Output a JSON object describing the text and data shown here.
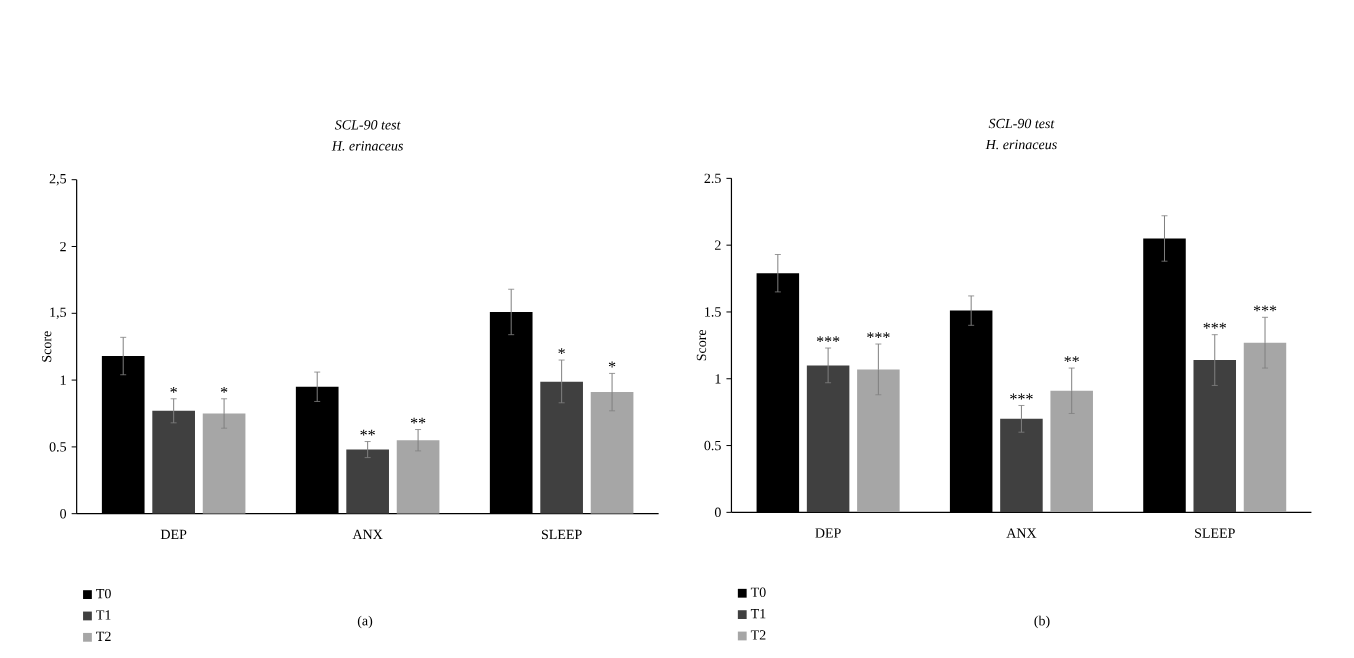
{
  "chart_data": [
    {
      "type": "bar",
      "title": "SCL-90 test",
      "subtitle": "H. erinaceus",
      "ylabel": "Score",
      "categories": [
        "DEP",
        "ANX",
        "SLEEP"
      ],
      "series": [
        {
          "name": "T0",
          "color": "#000000",
          "values": [
            1.18,
            0.95,
            1.51
          ],
          "errors": [
            0.14,
            0.11,
            0.17
          ]
        },
        {
          "name": "T1",
          "color": "#404040",
          "values": [
            0.77,
            0.48,
            0.99
          ],
          "errors": [
            0.09,
            0.06,
            0.16
          ],
          "value_labels": [
            "*",
            "**",
            "*"
          ]
        },
        {
          "name": "T2",
          "color": "#a6a6a6",
          "values": [
            0.75,
            0.55,
            0.91
          ],
          "errors": [
            0.11,
            0.08,
            0.14
          ],
          "value_labels": [
            "*",
            "**",
            "*"
          ]
        }
      ],
      "ylim": [
        0,
        2.5
      ],
      "yticks": [
        0,
        {
          "value": 0.5,
          "label": "0.5"
        },
        1,
        {
          "value": 1.5,
          "label": "1,5"
        },
        2,
        {
          "value": 2.5,
          "label": "2,5"
        }
      ],
      "grid": false,
      "legend": "bottom left",
      "annotations": [
        "(a)"
      ]
    },
    {
      "type": "bar",
      "title": "SCL-90 test",
      "subtitle": "H. erinaceus",
      "ylabel": "Score",
      "categories": [
        "DEP",
        "ANX",
        "SLEEP"
      ],
      "series": [
        {
          "name": "T0",
          "color": "#000000",
          "values": [
            1.79,
            1.51,
            2.05
          ],
          "errors": [
            0.14,
            0.11,
            0.17
          ]
        },
        {
          "name": "T1",
          "color": "#404040",
          "values": [
            1.1,
            0.7,
            1.14
          ],
          "errors": [
            0.13,
            0.1,
            0.19
          ],
          "value_labels": [
            "***",
            "***",
            "***"
          ]
        },
        {
          "name": "T2",
          "color": "#a6a6a6",
          "values": [
            1.07,
            0.91,
            1.27
          ],
          "errors": [
            0.19,
            0.17,
            0.19
          ],
          "value_labels": [
            "***",
            "**",
            "***"
          ]
        }
      ],
      "ylim": [
        0,
        2.5
      ],
      "yticks": [
        0,
        0.5,
        1,
        1.5,
        2,
        2.5
      ],
      "grid": false,
      "legend": "bottom left",
      "annotations": [
        "(b)"
      ]
    }
  ]
}
